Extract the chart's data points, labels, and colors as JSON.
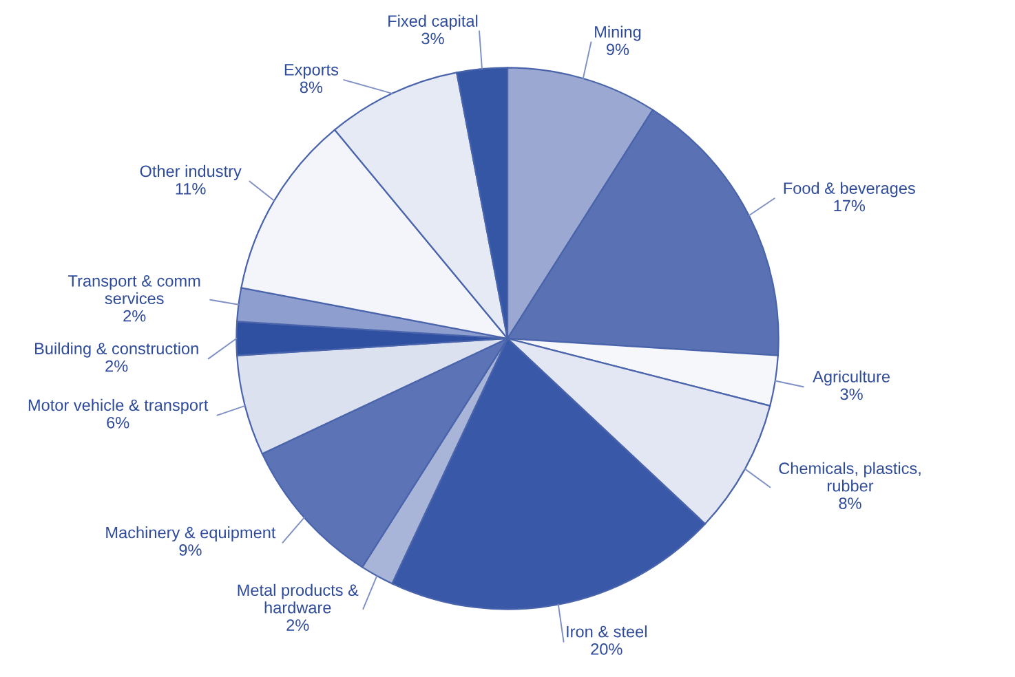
{
  "chart_data": {
    "type": "pie",
    "categories": [
      "Mining",
      "Food & beverages",
      "Agriculture",
      "Chemicals, plastics,\nrubber",
      "Iron & steel",
      "Metal products &\nhardware",
      "Machinery & equipment",
      "Motor vehicle & transport",
      "Building & construction",
      "Transport & comm\nservices",
      "Other industry",
      "Exports",
      "Fixed capital"
    ],
    "values": [
      9,
      17,
      3,
      8,
      20,
      2,
      9,
      6,
      2,
      2,
      11,
      8,
      3
    ],
    "value_labels": [
      "9%",
      "17%",
      "3%",
      "8%",
      "20%",
      "2%",
      "9%",
      "6%",
      "2%",
      "2%",
      "11%",
      "8%",
      "3%"
    ],
    "colors": [
      "#9aa8d2",
      "#5a72b4",
      "#f6f7fb",
      "#e3e7f3",
      "#3a58a8",
      "#a9b5d8",
      "#5c74b6",
      "#dce1f0",
      "#2f4fa0",
      "#8e9ece",
      "#f4f5fa",
      "#e6eaf4",
      "#3555a5"
    ]
  }
}
